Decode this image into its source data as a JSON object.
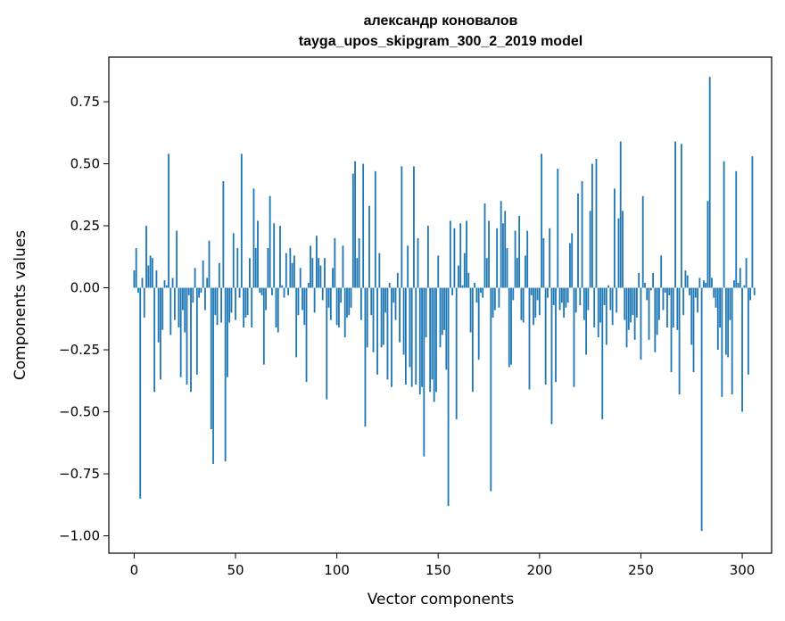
{
  "chart_data": {
    "type": "bar",
    "title": "александр коновалов",
    "subtitle": "tayga_upos_skipgram_300_2_2019 model",
    "xlabel": "Vector components",
    "ylabel": "Components values",
    "xlim": [
      -12.5,
      314.5
    ],
    "ylim": [
      -1.07,
      0.93
    ],
    "xticks": [
      0,
      50,
      100,
      150,
      200,
      250,
      300
    ],
    "yticks": [
      -1.0,
      -0.75,
      -0.5,
      -0.25,
      0.0,
      0.25,
      0.5,
      0.75
    ],
    "ytick_labels": [
      "−1.00",
      "−0.75",
      "−0.50",
      "−0.25",
      "0.00",
      "0.25",
      "0.50",
      "0.75"
    ],
    "grid": false,
    "color": "#1f77b4",
    "values": [
      0.07,
      0.16,
      -0.02,
      -0.85,
      0.04,
      -0.12,
      0.25,
      0.09,
      0.13,
      0.12,
      -0.42,
      0.07,
      -0.22,
      -0.37,
      -0.17,
      0.03,
      0.01,
      0.54,
      -0.19,
      0.04,
      -0.13,
      0.23,
      -0.16,
      -0.36,
      -0.09,
      -0.18,
      -0.39,
      -0.03,
      -0.42,
      -0.06,
      0.08,
      -0.35,
      -0.04,
      -0.02,
      0.11,
      -0.09,
      0.04,
      0.19,
      -0.57,
      -0.71,
      -0.11,
      -0.15,
      0.1,
      -0.14,
      0.43,
      -0.7,
      -0.36,
      -0.14,
      -0.1,
      0.22,
      -0.13,
      0.16,
      -0.04,
      0.54,
      -0.16,
      -0.12,
      -0.11,
      0.12,
      -0.16,
      0.4,
      0.16,
      0.27,
      -0.02,
      -0.03,
      -0.31,
      -0.09,
      0.16,
      0.37,
      -0.03,
      0.26,
      -0.16,
      -0.18,
      0.25,
      0.01,
      -0.04,
      0.14,
      -0.03,
      0.16,
      0.1,
      0.13,
      -0.28,
      -0.11,
      0.08,
      -0.09,
      -0.15,
      -0.38,
      0.02,
      0.17,
      0.12,
      -0.1,
      0.21,
      0.12,
      0.09,
      -0.05,
      0.12,
      -0.45,
      -0.08,
      -0.13,
      0.08,
      0.2,
      -0.15,
      -0.16,
      -0.06,
      0.17,
      -0.2,
      -0.12,
      -0.11,
      -0.08,
      0.46,
      0.51,
      0.12,
      0.2,
      -0.13,
      0.5,
      -0.56,
      -0.24,
      0.33,
      -0.11,
      -0.26,
      0.47,
      -0.35,
      0.14,
      -0.24,
      -0.23,
      -0.1,
      -0.37,
      0.02,
      -0.4,
      -0.06,
      -0.13,
      0.06,
      -0.22,
      0.49,
      -0.27,
      -0.39,
      0.17,
      -0.32,
      -0.4,
      0.49,
      -0.39,
      0.2,
      -0.43,
      -0.4,
      -0.68,
      -0.2,
      0.25,
      -0.42,
      -0.37,
      -0.46,
      -0.42,
      0.13,
      -0.24,
      -0.19,
      -0.17,
      -0.33,
      -0.88,
      0.27,
      -0.03,
      0.24,
      -0.53,
      0.09,
      0.26,
      0.01,
      0.14,
      0.27,
      0.06,
      -0.18,
      -0.42,
      0.02,
      -0.06,
      -0.29,
      -0.02,
      -0.04,
      0.34,
      0.12,
      0.27,
      -0.82,
      -0.12,
      -0.09,
      0.24,
      -0.08,
      0.35,
      0.26,
      0.31,
      0.16,
      -0.32,
      -0.31,
      -0.05,
      0.23,
      0.12,
      0.29,
      -0.13,
      -0.14,
      0.13,
      0.23,
      -0.41,
      -0.03,
      -0.15,
      -0.12,
      -0.05,
      -0.11,
      0.54,
      0.2,
      -0.39,
      -0.04,
      0.24,
      -0.55,
      -0.07,
      -0.38,
      0.48,
      -0.09,
      -0.06,
      -0.12,
      -0.08,
      -0.06,
      0.18,
      0.22,
      -0.4,
      -0.1,
      0.38,
      -0.07,
      0.43,
      -0.13,
      -0.27,
      -0.09,
      0.31,
      0.5,
      -0.16,
      0.52,
      -0.2,
      -0.14,
      -0.53,
      -0.07,
      -0.23,
      0.01,
      -0.09,
      -0.15,
      0.4,
      -0.1,
      0.28,
      0.59,
      0.31,
      -0.13,
      -0.24,
      -0.17,
      -0.14,
      -0.11,
      -0.21,
      -0.12,
      0.06,
      -0.29,
      0.37,
      0.02,
      -0.05,
      -0.21,
      -0.01,
      0.06,
      -0.26,
      -0.19,
      -0.13,
      0.13,
      -0.09,
      -0.02,
      -0.16,
      -0.03,
      -0.34,
      -0.16,
      0.59,
      -0.17,
      -0.43,
      0.58,
      -0.11,
      0.07,
      0.05,
      -0.03,
      -0.23,
      -0.34,
      -0.04,
      -0.1,
      0.04,
      -0.98,
      0.03,
      0.02,
      0.35,
      0.85,
      0.04,
      -0.04,
      -0.08,
      -0.25,
      -0.16,
      -0.44,
      0.51,
      -0.27,
      -0.28,
      -0.13,
      -0.43,
      0.03,
      0.47,
      0.02,
      0.08,
      -0.5,
      0.01,
      0.12,
      -0.35,
      -0.05,
      0.53,
      -0.03
    ]
  }
}
